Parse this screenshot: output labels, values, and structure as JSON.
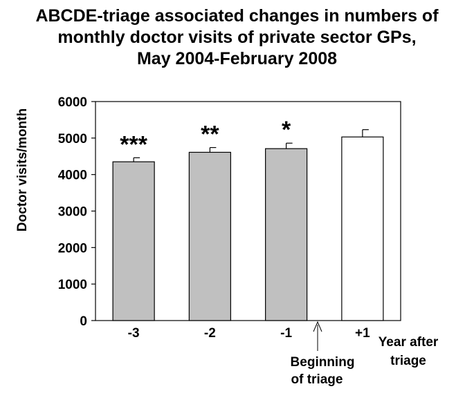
{
  "chart_data": {
    "type": "bar",
    "title_lines": [
      "ABCDE-triage associated changes in numbers of",
      "monthly doctor visits of private sector GPs,",
      "May 2004-February 2008"
    ],
    "ylabel": "Doctor visits/month",
    "xlabel": "Year after triage",
    "xlabel_lines": [
      "Year after",
      "triage"
    ],
    "ylim": [
      0,
      6000
    ],
    "yticks": [
      "0",
      "1000",
      "2000",
      "3000",
      "4000",
      "5000",
      "6000"
    ],
    "categories": [
      "-3",
      "-2",
      "-1",
      "+1"
    ],
    "values": [
      4350,
      4610,
      4710,
      5030
    ],
    "error_bars": [
      110,
      130,
      150,
      200
    ],
    "significance": [
      "***",
      "**",
      "*",
      ""
    ],
    "bar_colors": [
      "#c0c0c0",
      "#c0c0c0",
      "#c0c0c0",
      "#ffffff"
    ],
    "annotation": {
      "lines": [
        "Beginning",
        "of triage"
      ]
    },
    "grid": false
  }
}
